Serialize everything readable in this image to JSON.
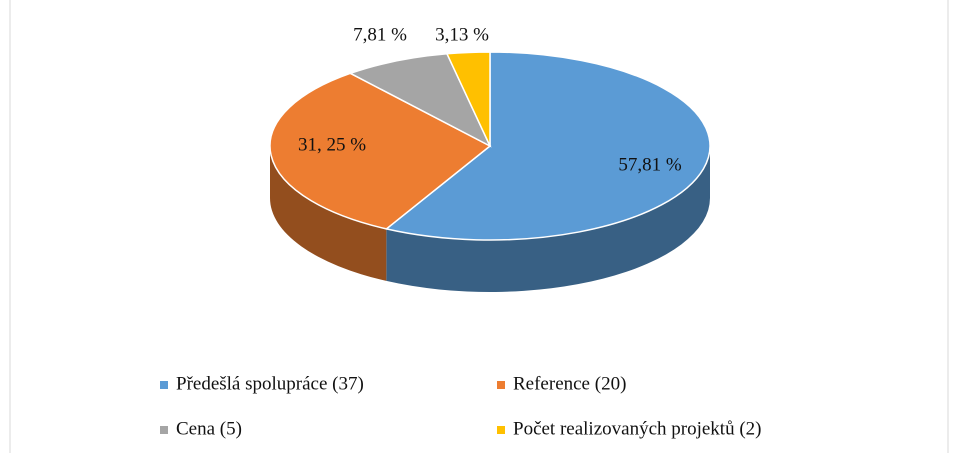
{
  "chart_data": {
    "type": "pie",
    "three_d": true,
    "categories": [
      "Předešlá spolupráce (37)",
      "Reference (20)",
      "Cena (5)",
      "Počet realizovaných projektů (2)"
    ],
    "values": [
      57.81,
      31.25,
      7.81,
      3.13
    ],
    "value_labels": [
      "57,81 %",
      "31, 25 %",
      "7,81 %",
      "3,13 %"
    ],
    "colors": [
      "#5b9bd5",
      "#ed7d31",
      "#a5a5a5",
      "#ffc000"
    ],
    "legend": "bottom"
  }
}
